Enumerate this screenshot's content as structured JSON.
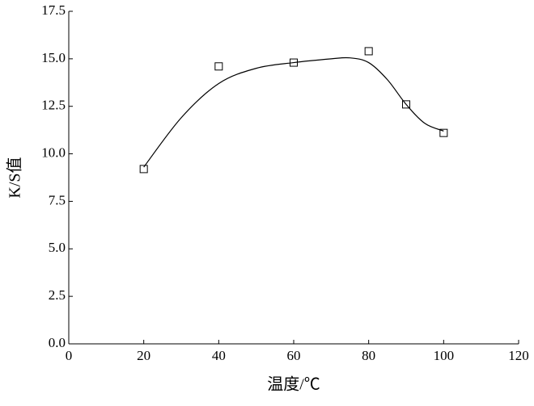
{
  "chart_data": {
    "type": "scatter",
    "xlabel": "温度/℃",
    "ylabel": "K/S值",
    "series": [
      {
        "marker": "square",
        "color": "#000000",
        "x": [
          20,
          40,
          60,
          80,
          90,
          100
        ],
        "values": [
          9.2,
          14.6,
          14.8,
          15.4,
          12.6,
          11.1
        ]
      },
      {
        "marker": "none",
        "style": "smooth-line",
        "color": "#000000",
        "x": [
          20,
          30,
          40,
          50,
          60,
          70,
          75,
          80,
          85,
          90,
          95,
          100
        ],
        "values": [
          9.3,
          11.9,
          13.7,
          14.5,
          14.8,
          15.0,
          15.05,
          14.8,
          13.9,
          12.6,
          11.6,
          11.2
        ]
      }
    ],
    "xlim": [
      0,
      120
    ],
    "xticks": [
      0,
      20,
      40,
      60,
      80,
      100,
      120
    ],
    "ylim": [
      0,
      17.5
    ],
    "yticks": [
      {
        "value": 0,
        "label": "0.0"
      },
      2.5,
      {
        "value": 5,
        "label": "5.0"
      },
      7.5,
      {
        "value": 10,
        "label": "10.0"
      },
      12.5,
      {
        "value": 15,
        "label": "15.0"
      },
      17.5
    ],
    "grid": false
  }
}
